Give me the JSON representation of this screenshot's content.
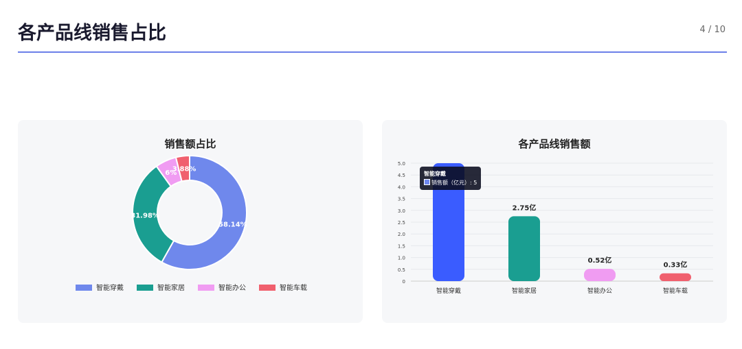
{
  "header": {
    "title": "各产品线销售占比",
    "page": "4 / 10"
  },
  "chart_data": [
    {
      "type": "pie",
      "donut": true,
      "title": "销售额占比",
      "legend_position": "bottom",
      "categories": [
        "智能穿戴",
        "智能家居",
        "智能办公",
        "智能车载"
      ],
      "values": [
        58.14,
        31.98,
        6,
        3.88
      ],
      "labels": [
        "58.14%",
        "31.98%",
        "6%",
        "3.88%"
      ],
      "colors": [
        "#6f88ec",
        "#1a9e91",
        "#f09cf2",
        "#f0606e"
      ]
    },
    {
      "type": "bar",
      "title": "各产品线销售额",
      "ylim": [
        0,
        5
      ],
      "yticks": [
        "0",
        "0.5",
        "1.0",
        "1.5",
        "2.0",
        "2.5",
        "3.0",
        "3.5",
        "4.0",
        "4.5",
        "5.0"
      ],
      "grid": true,
      "categories": [
        "智能穿戴",
        "智能家居",
        "智能办公",
        "智能车载"
      ],
      "series": [
        {
          "name": "销售额（亿元）",
          "values": [
            5,
            2.75,
            0.52,
            0.33
          ]
        }
      ],
      "data_labels": [
        "",
        "2.75亿",
        "0.52亿",
        "0.33亿"
      ],
      "colors": [
        "#3a5cff",
        "#1a9e91",
        "#f09cf2",
        "#f0606e"
      ],
      "tooltip": {
        "title": "智能穿戴",
        "text": "销售额（亿元）: 5"
      }
    }
  ]
}
